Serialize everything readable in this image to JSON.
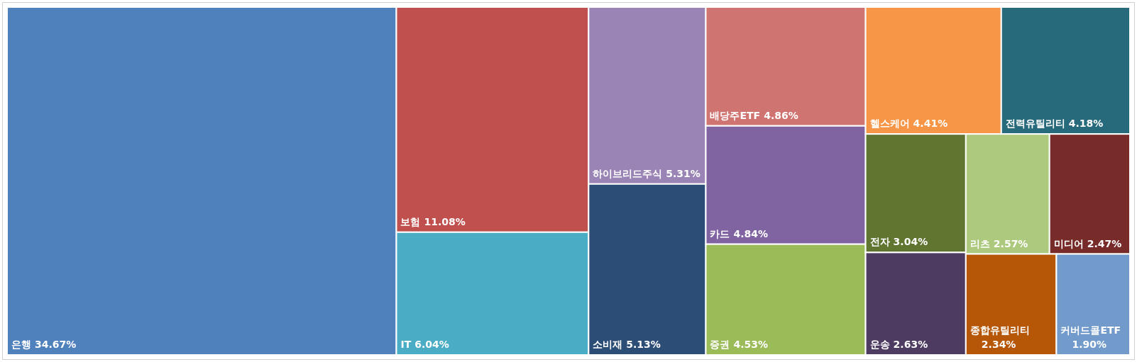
{
  "chart_data": {
    "type": "other",
    "categories": [
      "은행",
      "보험",
      "IT",
      "하이브리드주식",
      "소비재",
      "배당주ETF",
      "카드",
      "증권",
      "헬스케어",
      "전력유틸리티",
      "전자",
      "운송",
      "리츠",
      "미디어",
      "종합유틸리티",
      "커버드콜ETF"
    ],
    "values": [
      34.67,
      11.08,
      6.04,
      5.31,
      5.13,
      4.86,
      4.84,
      4.53,
      4.41,
      4.18,
      3.04,
      2.63,
      2.57,
      2.47,
      2.34,
      1.9
    ],
    "value_labels": [
      "34.67%",
      "11.08%",
      "6.04%",
      "5.31%",
      "5.13%",
      "4.86%",
      "4.84%",
      "4.53%",
      "4.41%",
      "4.18%",
      "3.04%",
      "2.63%",
      "2.57%",
      "2.47%",
      "2.34%",
      "1.90%"
    ],
    "colors": [
      "#4f81bd",
      "#c0504d",
      "#4bacc6",
      "#9a83b5",
      "#2c4d75",
      "#d07471",
      "#8064a2",
      "#9bbb59",
      "#f79646",
      "#276a7c",
      "#5f7530",
      "#4d3b62",
      "#adc97d",
      "#772c2a",
      "#b65708",
      "#729aca"
    ]
  }
}
